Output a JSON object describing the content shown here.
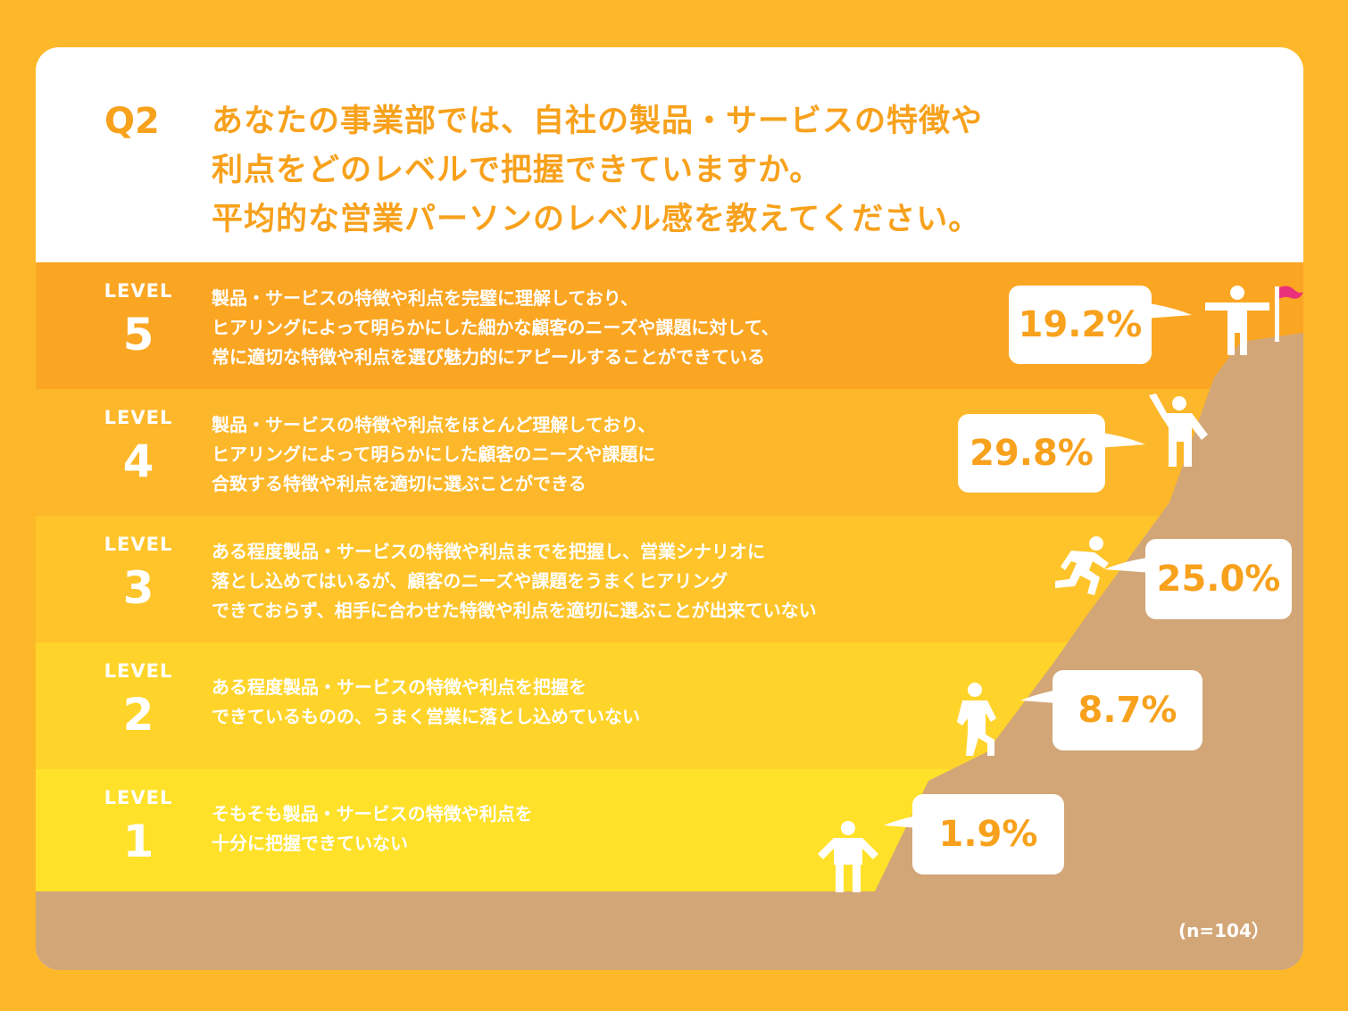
{
  "question": {
    "label": "Q2",
    "lines": [
      "あなたの事業部では、自社の製品・サービスの特徴や",
      "利点をどのレベルで把握できていますか。",
      "平均的な営業パーソンのレベル感を教えてください。"
    ]
  },
  "levels": [
    {
      "label": "LEVEL",
      "number": "5",
      "lines": [
        "製品・サービスの特徴や利点を完璧に理解しており、",
        "ヒアリングによって明らかにした細かな顧客のニーズや課題に対して、",
        "常に適切な特徴や利点を選び魅力的にアピールすることができている"
      ],
      "percent_label": "19.2%"
    },
    {
      "label": "LEVEL",
      "number": "4",
      "lines": [
        "製品・サービスの特徴や利点をほとんど理解しており、",
        "ヒアリングによって明らかにした顧客のニーズや課題に",
        "合致する特徴や利点を適切に選ぶことができる"
      ],
      "percent_label": "29.8%"
    },
    {
      "label": "LEVEL",
      "number": "3",
      "lines": [
        "ある程度製品・サービスの特徴や利点までを把握し、営業シナリオに",
        "落とし込めてはいるが、顧客のニーズや課題をうまくヒアリング",
        "できておらず、相手に合わせた特徴や利点を適切に選ぶことが出来ていない"
      ],
      "percent_label": "25.0%"
    },
    {
      "label": "LEVEL",
      "number": "2",
      "lines": [
        "ある程度製品・サービスの特徴や利点を把握を",
        "できているものの、うまく営業に落とし込めていない"
      ],
      "percent_label": "8.7%"
    },
    {
      "label": "LEVEL",
      "number": "1",
      "lines": [
        "そもそも製品・サービスの特徴や利点を",
        "十分に把握できていない"
      ],
      "percent_label": "1.9%"
    }
  ],
  "sample_size": "(n=104）",
  "colors": {
    "background": "#FDB82A",
    "accent": "#F7A11C",
    "level5": "#FBA623",
    "level4": "#FDB72A",
    "level3": "#FEC42A",
    "level2": "#FFD42A",
    "level1": "#FFE12A",
    "mountain": "#D2A677",
    "flag": "#E8317A"
  },
  "chart_data": {
    "type": "bar",
    "categories": [
      "LEVEL 5",
      "LEVEL 4",
      "LEVEL 3",
      "LEVEL 2",
      "LEVEL 1"
    ],
    "values": [
      19.2,
      29.8,
      25.0,
      8.7,
      1.9
    ],
    "unit": "%",
    "title": "",
    "xlabel": "",
    "ylabel": "",
    "note": "(n=104）"
  }
}
